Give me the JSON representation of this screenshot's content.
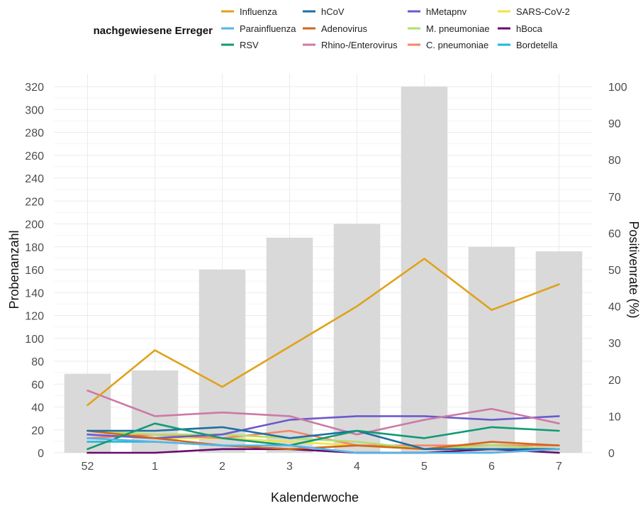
{
  "chart_data": {
    "type": "bar",
    "xlabel": "Kalenderwoche",
    "ylabel": "Probenanzahl",
    "y2label": "Positivenrate (%)",
    "categories": [
      "52",
      "1",
      "2",
      "3",
      "4",
      "5",
      "6",
      "7"
    ],
    "ylim": [
      0,
      330
    ],
    "yticks": [
      0,
      20,
      40,
      60,
      80,
      100,
      120,
      140,
      160,
      180,
      200,
      220,
      240,
      260,
      280,
      300,
      320
    ],
    "y2lim": [
      0,
      103.125
    ],
    "y2ticks": [
      0,
      10,
      20,
      30,
      40,
      50,
      60,
      70,
      80,
      90,
      100
    ],
    "grid": true,
    "legend_position": "top",
    "legend_title": "nachgewiesene Erreger",
    "bars": {
      "color": "#d9d9d9",
      "values": [
        69,
        72,
        160,
        188,
        200,
        320,
        180,
        176
      ]
    },
    "series": [
      {
        "name": "Influenza",
        "color": "#e0a21a",
        "values": [
          13,
          28,
          18,
          29,
          40,
          53,
          39,
          46
        ]
      },
      {
        "name": "Parainfluenza",
        "color": "#56b4e9",
        "values": [
          4,
          3,
          2,
          2,
          0,
          0,
          0,
          1
        ]
      },
      {
        "name": "RSV",
        "color": "#0f9b74",
        "values": [
          1,
          8,
          4,
          2,
          6,
          4,
          7,
          6
        ]
      },
      {
        "name": "hCoV",
        "color": "#1f6ea1",
        "values": [
          6,
          6,
          7,
          4,
          6,
          1,
          1,
          1
        ]
      },
      {
        "name": "Adenovirus",
        "color": "#d2671a",
        "values": [
          6,
          4,
          2,
          1,
          2,
          1,
          3,
          2
        ]
      },
      {
        "name": "Rhino-/Enterovirus",
        "color": "#cc79a7",
        "values": [
          17,
          10,
          11,
          10,
          5,
          9,
          12,
          8
        ]
      },
      {
        "name": "hMetapnv",
        "color": "#6a5acd",
        "values": [
          5,
          4,
          5,
          9,
          10,
          10,
          9,
          10
        ]
      },
      {
        "name": "M. pneumoniae",
        "color": "#b3de69",
        "values": [
          6,
          5,
          5,
          4,
          3,
          1,
          2,
          1
        ]
      },
      {
        "name": "C. pneumoniae",
        "color": "#f4866a",
        "values": [
          4,
          5,
          4,
          6,
          2,
          2,
          2,
          2
        ]
      },
      {
        "name": "SARS-CoV-2",
        "color": "#f0e442",
        "values": [
          6,
          4,
          4,
          3,
          2,
          1,
          2,
          2
        ]
      },
      {
        "name": "hBoca",
        "color": "#6a0a6b",
        "values": [
          0,
          0,
          1,
          1,
          0,
          0,
          1,
          0
        ]
      },
      {
        "name": "Bordetella",
        "color": "#1fbad0",
        "values": [
          3,
          3,
          2,
          1,
          0,
          0,
          0,
          1
        ]
      }
    ]
  }
}
